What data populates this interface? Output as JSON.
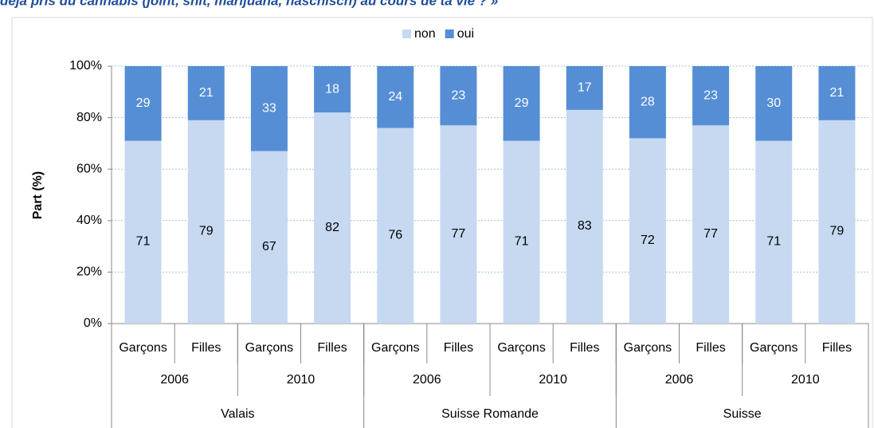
{
  "chart_data": {
    "type": "stacked_bar",
    "title": "déjà pris du cannabis (joint, shit, marijuana, haschisch) au cours de ta vie ? »",
    "y_label": "Part (%)",
    "categories": [
      "Garçons",
      "Filles",
      "Garçons",
      "Filles",
      "Garçons",
      "Filles",
      "Garçons",
      "Filles",
      "Garçons",
      "Filles",
      "Garçons",
      "Filles"
    ],
    "years": [
      "2006",
      "2010",
      "2006",
      "2010",
      "2006",
      "2010"
    ],
    "regions": [
      "Valais",
      "Suisse Romande",
      "Suisse"
    ],
    "series": [
      {
        "name": "non",
        "color": "#c6d9f1",
        "values": [
          71,
          79,
          67,
          82,
          76,
          77,
          71,
          83,
          72,
          77,
          71,
          79
        ]
      },
      {
        "name": "oui",
        "color": "#558ed5",
        "values": [
          29,
          21,
          33,
          18,
          24,
          23,
          29,
          17,
          28,
          23,
          30,
          21
        ]
      }
    ],
    "ylim": [
      0,
      100
    ],
    "yticks": [
      {
        "value": 0,
        "label": "0%"
      },
      {
        "value": 20,
        "label": "20%"
      },
      {
        "value": 40,
        "label": "40%"
      },
      {
        "value": 60,
        "label": "60%"
      },
      {
        "value": 80,
        "label": "80%"
      },
      {
        "value": 100,
        "label": "100%"
      }
    ],
    "grid": true,
    "legend": "top"
  }
}
